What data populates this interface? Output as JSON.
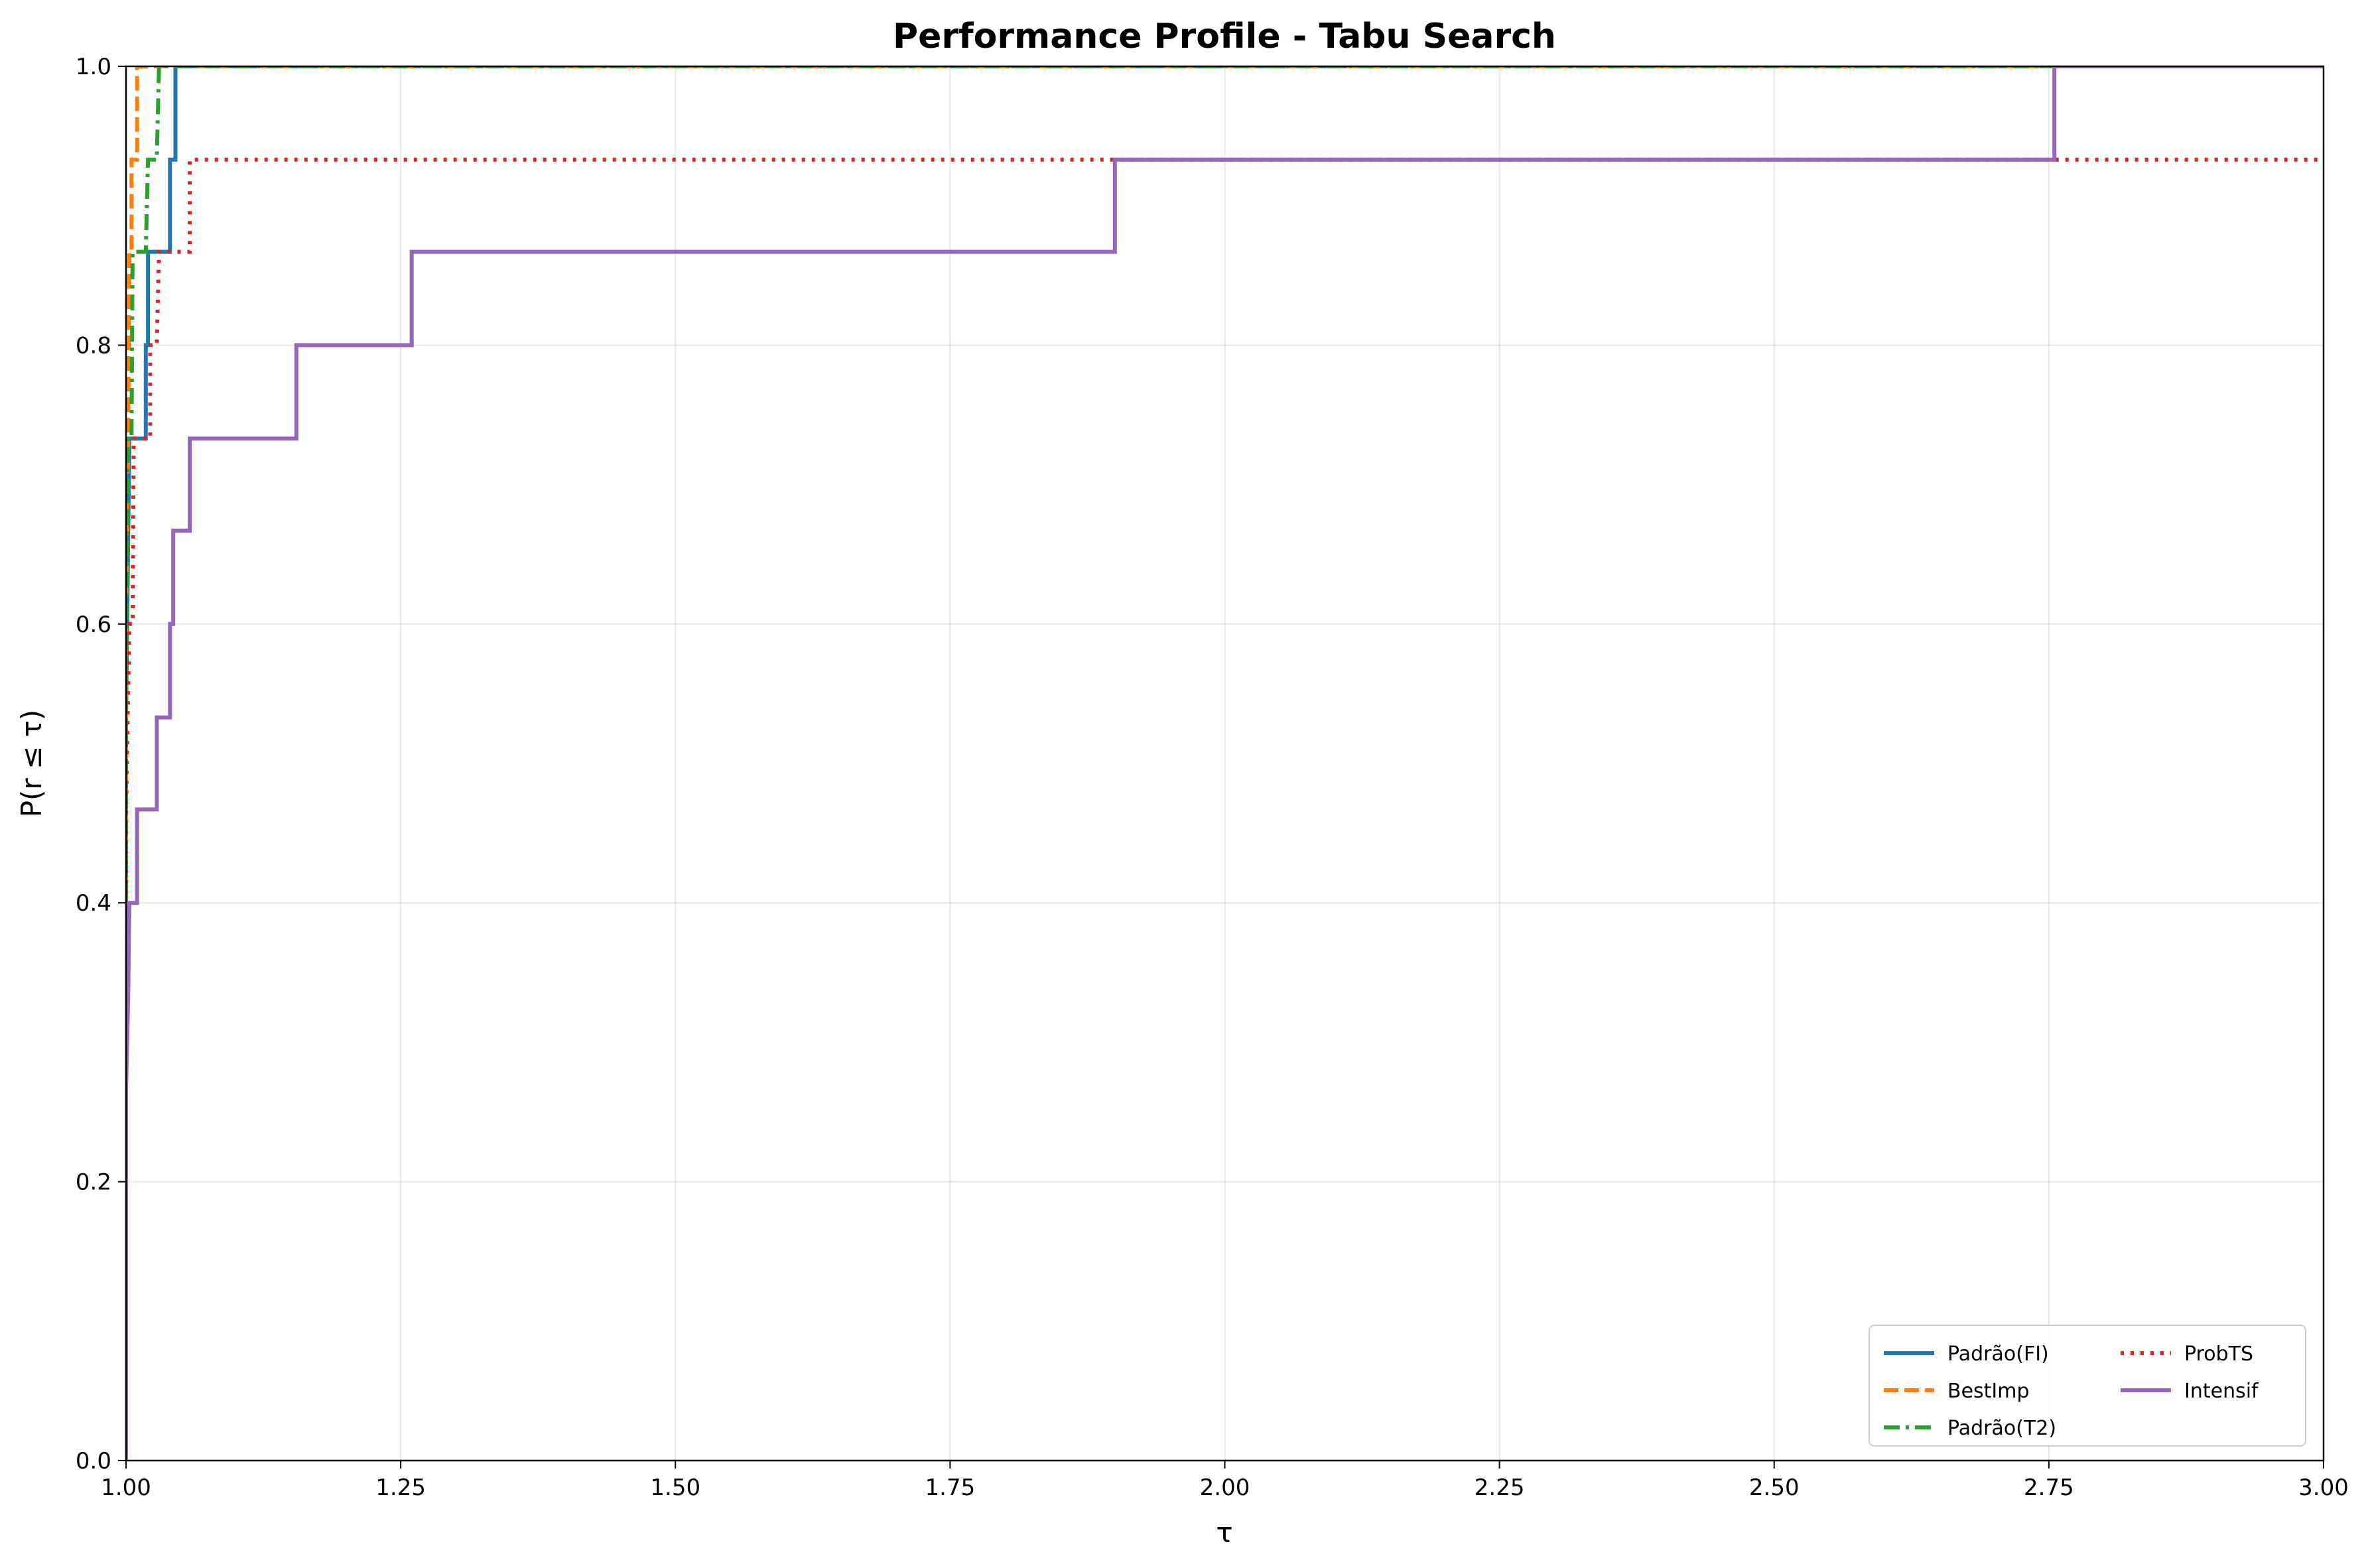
{
  "chart_data": {
    "type": "line",
    "title": "Performance Profile - Tabu Search",
    "xlabel": "τ",
    "ylabel": "P(r ≤ τ)",
    "xlim": [
      1.0,
      3.0
    ],
    "ylim": [
      0.0,
      1.0
    ],
    "x_ticks": [
      "1.00",
      "1.25",
      "1.50",
      "1.75",
      "2.00",
      "2.25",
      "2.50",
      "2.75",
      "3.00"
    ],
    "y_ticks": [
      "0.0",
      "0.2",
      "0.4",
      "0.6",
      "0.8",
      "1.0"
    ],
    "grid": true,
    "legend": {
      "position": "lower-right",
      "columns": 2
    },
    "series": [
      {
        "name": "Padrão(FI)",
        "color": "#1f77b4",
        "style": "solid",
        "points": [
          [
            1.0,
            0.0
          ],
          [
            1.0,
            0.267
          ],
          [
            1.0,
            0.533
          ],
          [
            1.003,
            0.733
          ],
          [
            1.018,
            0.733
          ],
          [
            1.018,
            0.8
          ],
          [
            1.02,
            0.8
          ],
          [
            1.02,
            0.867
          ],
          [
            1.04,
            0.867
          ],
          [
            1.04,
            0.933
          ],
          [
            1.045,
            0.933
          ],
          [
            1.045,
            1.0
          ],
          [
            3.0,
            1.0
          ]
        ]
      },
      {
        "name": "BestImp",
        "color": "#ff7f0e",
        "style": "dashed",
        "points": [
          [
            1.0,
            0.0
          ],
          [
            1.0,
            0.6
          ],
          [
            1.002,
            0.733
          ],
          [
            1.003,
            0.867
          ],
          [
            1.005,
            0.867
          ],
          [
            1.005,
            0.933
          ],
          [
            1.01,
            0.933
          ],
          [
            1.01,
            1.0
          ],
          [
            3.0,
            1.0
          ]
        ]
      },
      {
        "name": "Padrão(T2)",
        "color": "#2ca02c",
        "style": "dashdot",
        "points": [
          [
            1.0,
            0.0
          ],
          [
            1.0,
            0.533
          ],
          [
            1.002,
            0.733
          ],
          [
            1.005,
            0.733
          ],
          [
            1.006,
            0.867
          ],
          [
            1.018,
            0.867
          ],
          [
            1.02,
            0.933
          ],
          [
            1.028,
            0.933
          ],
          [
            1.03,
            1.0
          ],
          [
            3.0,
            1.0
          ]
        ]
      },
      {
        "name": "ProbTS",
        "color": "#d62728",
        "style": "dotted",
        "points": [
          [
            1.0,
            0.0
          ],
          [
            1.0,
            0.467
          ],
          [
            1.003,
            0.6
          ],
          [
            1.006,
            0.6
          ],
          [
            1.007,
            0.733
          ],
          [
            1.022,
            0.733
          ],
          [
            1.022,
            0.8
          ],
          [
            1.028,
            0.8
          ],
          [
            1.03,
            0.867
          ],
          [
            1.058,
            0.867
          ],
          [
            1.058,
            0.933
          ],
          [
            3.0,
            0.933
          ]
        ]
      },
      {
        "name": "Intensif",
        "color": "#9467bd",
        "style": "solid",
        "points": [
          [
            1.0,
            0.0
          ],
          [
            1.0,
            0.267
          ],
          [
            1.002,
            0.333
          ],
          [
            1.003,
            0.4
          ],
          [
            1.01,
            0.4
          ],
          [
            1.01,
            0.467
          ],
          [
            1.028,
            0.467
          ],
          [
            1.028,
            0.533
          ],
          [
            1.04,
            0.533
          ],
          [
            1.04,
            0.6
          ],
          [
            1.043,
            0.6
          ],
          [
            1.043,
            0.667
          ],
          [
            1.058,
            0.667
          ],
          [
            1.058,
            0.733
          ],
          [
            1.155,
            0.733
          ],
          [
            1.155,
            0.8
          ],
          [
            1.26,
            0.8
          ],
          [
            1.26,
            0.867
          ],
          [
            1.9,
            0.867
          ],
          [
            1.9,
            0.933
          ],
          [
            2.755,
            0.933
          ],
          [
            2.755,
            1.0
          ],
          [
            3.0,
            1.0
          ]
        ]
      }
    ]
  }
}
